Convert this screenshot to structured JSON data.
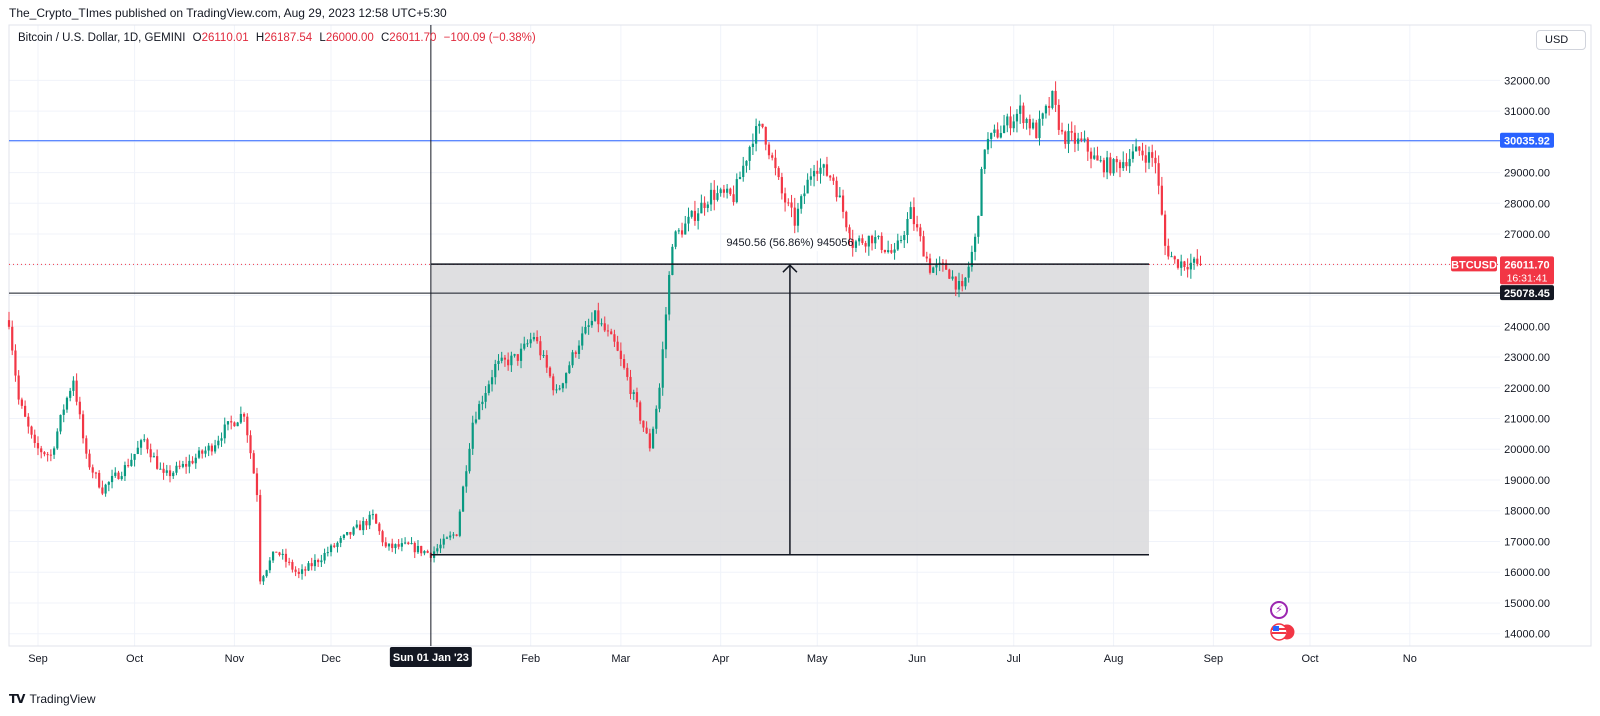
{
  "header": {
    "published": "The_Crypto_TImes published on TradingView.com, Aug 29, 2023 12:58 UTC+5:30"
  },
  "legend": {
    "symbol": "Bitcoin / U.S. Dollar, 1D, GEMINI",
    "o_key": "O",
    "o": "26110.01",
    "h_key": "H",
    "h": "26187.54",
    "l_key": "L",
    "l": "26000.00",
    "c_key": "C",
    "c": "26011.70",
    "change": "−100.09 (−0.38%)"
  },
  "currency_button": "USD",
  "labels": {
    "level_blue": "30035.92",
    "level_black": "25078.45",
    "ticker": "BTCUSD",
    "last_price": "26011.70",
    "countdown": "16:31:41",
    "crosshair_date": "Sun 01 Jan '23",
    "measure": "9450.56 (56.86%) 945056"
  },
  "footer": {
    "brand": "TradingView"
  },
  "colors": {
    "up": "#089981",
    "down": "#f23645",
    "level_blue": "#2962ff",
    "shade": "#d9d9dc"
  },
  "chart_data": {
    "type": "candlestick",
    "symbol": "Bitcoin / U.S. Dollar",
    "interval": "1D",
    "exchange": "GEMINI",
    "ylim": [
      13600,
      33800
    ],
    "y_ticks": [
      "14000.00",
      "15000.00",
      "16000.00",
      "17000.00",
      "18000.00",
      "19000.00",
      "20000.00",
      "21000.00",
      "22000.00",
      "23000.00",
      "24000.00",
      "25000.00",
      "26000.00",
      "27000.00",
      "28000.00",
      "29000.00",
      "30000.00",
      "31000.00",
      "32000.00"
    ],
    "x_ticks": [
      "Sep",
      "Oct",
      "Nov",
      "Dec",
      "Feb",
      "Mar",
      "Apr",
      "May",
      "Jun",
      "Jul",
      "Aug",
      "Sep",
      "Oct",
      "No"
    ],
    "x_start": "2022-08-23",
    "x_end": "2023-11-29",
    "horizontal_levels": [
      30035.92,
      25078.45
    ],
    "last_price": 26011.7,
    "measure_box": {
      "from_date": "2023-01-01",
      "to_date": "2023-08-12",
      "low": 16570,
      "high": 26020,
      "change": 9450.56,
      "percent": 56.86
    },
    "crosshair_date": "2023-01-01",
    "closes": [
      [
        "2022-08-23",
        24200
      ],
      [
        "2022-08-26",
        21600
      ],
      [
        "2022-08-31",
        20050
      ],
      [
        "2022-09-05",
        19800
      ],
      [
        "2022-09-09",
        21350
      ],
      [
        "2022-09-12",
        22300
      ],
      [
        "2022-09-16",
        19700
      ],
      [
        "2022-09-21",
        18700
      ],
      [
        "2022-09-28",
        19400
      ],
      [
        "2022-10-04",
        20300
      ],
      [
        "2022-10-10",
        19100
      ],
      [
        "2022-10-17",
        19500
      ],
      [
        "2022-10-25",
        20100
      ],
      [
        "2022-10-29",
        20650
      ],
      [
        "2022-11-04",
        21200
      ],
      [
        "2022-11-08",
        18600
      ],
      [
        "2022-11-09",
        15800
      ],
      [
        "2022-11-14",
        16700
      ],
      [
        "2022-11-21",
        15900
      ],
      [
        "2022-11-28",
        16500
      ],
      [
        "2022-12-05",
        17100
      ],
      [
        "2022-12-14",
        17800
      ],
      [
        "2022-12-18",
        16800
      ],
      [
        "2022-12-25",
        16850
      ],
      [
        "2023-01-01",
        16600
      ],
      [
        "2023-01-09",
        17300
      ],
      [
        "2023-01-14",
        20900
      ],
      [
        "2023-01-21",
        22700
      ],
      [
        "2023-01-28",
        23000
      ],
      [
        "2023-02-02",
        23700
      ],
      [
        "2023-02-09",
        21800
      ],
      [
        "2023-02-16",
        23500
      ],
      [
        "2023-02-21",
        24300
      ],
      [
        "2023-02-27",
        23400
      ],
      [
        "2023-03-03",
        22300
      ],
      [
        "2023-03-10",
        20100
      ],
      [
        "2023-03-13",
        22000
      ],
      [
        "2023-03-17",
        26800
      ],
      [
        "2023-03-22",
        27400
      ],
      [
        "2023-03-29",
        28300
      ],
      [
        "2023-04-05",
        28200
      ],
      [
        "2023-04-11",
        30200
      ],
      [
        "2023-04-14",
        30500
      ],
      [
        "2023-04-20",
        28300
      ],
      [
        "2023-04-24",
        27400
      ],
      [
        "2023-04-30",
        29300
      ],
      [
        "2023-05-06",
        28800
      ],
      [
        "2023-05-12",
        26700
      ],
      [
        "2023-05-18",
        26900
      ],
      [
        "2023-05-25",
        26300
      ],
      [
        "2023-05-30",
        27700
      ],
      [
        "2023-06-05",
        25900
      ],
      [
        "2023-06-10",
        25900
      ],
      [
        "2023-06-15",
        25100
      ],
      [
        "2023-06-19",
        26800
      ],
      [
        "2023-06-22",
        29900
      ],
      [
        "2023-06-26",
        30300
      ],
      [
        "2023-07-03",
        31000
      ],
      [
        "2023-07-08",
        30300
      ],
      [
        "2023-07-13",
        31400
      ],
      [
        "2023-07-16",
        30200
      ],
      [
        "2023-07-23",
        29900
      ],
      [
        "2023-07-27",
        29300
      ],
      [
        "2023-08-01",
        29200
      ],
      [
        "2023-08-09",
        29700
      ],
      [
        "2023-08-14",
        29400
      ],
      [
        "2023-08-17",
        26600
      ],
      [
        "2023-08-20",
        26100
      ],
      [
        "2023-08-28",
        26011.7
      ]
    ]
  }
}
